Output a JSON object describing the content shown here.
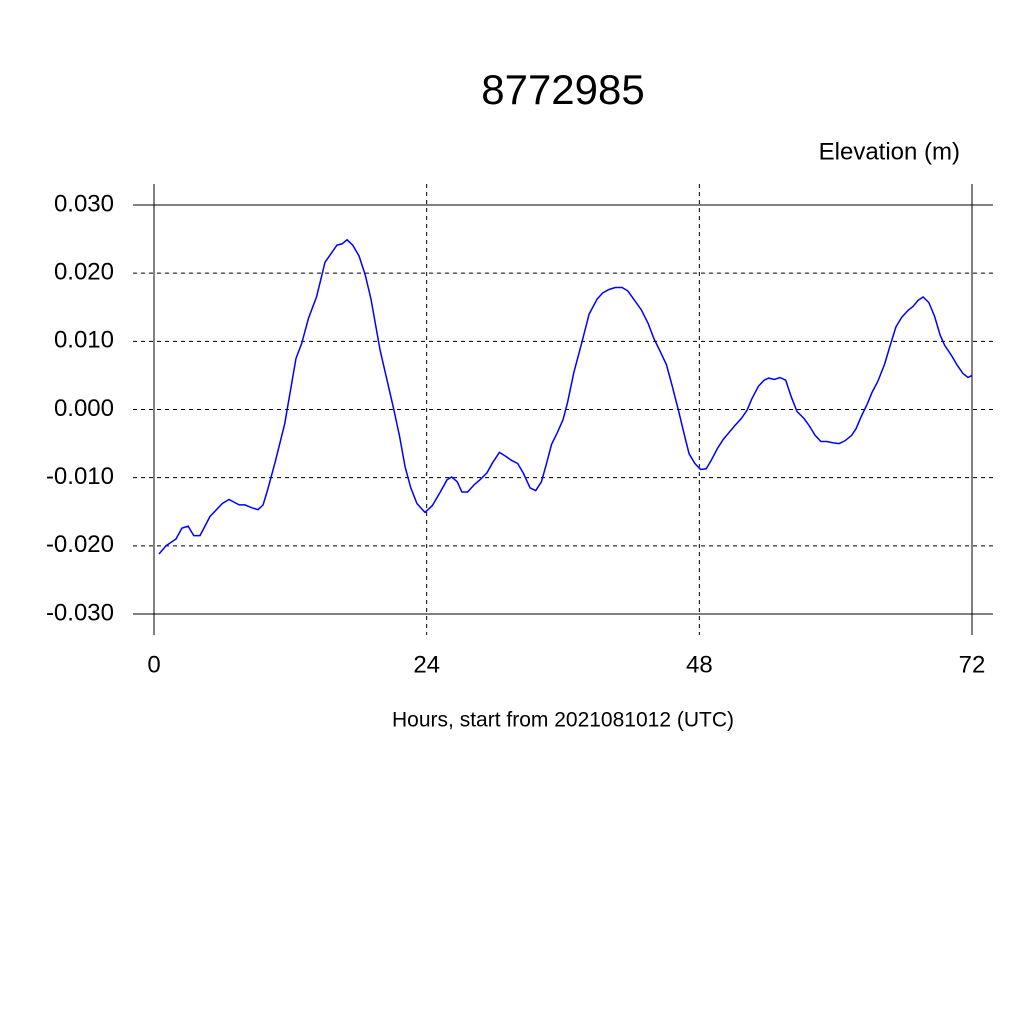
{
  "chart_data": {
    "type": "line",
    "title": "8772985",
    "ylabel": "Elevation (m)",
    "xlabel": "Hours, start from 2021081012 (UTC)",
    "color": "#0000ff",
    "grid": true,
    "x": [
      0.44,
      1.06,
      1.94,
      2.46,
      3,
      3.5,
      4.05,
      4.93,
      6,
      6.6,
      7.5,
      8,
      8.6,
      9.15,
      9.6,
      10,
      10.65,
      11.5,
      12.5,
      13,
      13.6,
      14.3,
      15.05,
      15.6,
      16.1,
      16.55,
      17,
      17.5,
      18.05,
      18.6,
      19.1,
      19.9,
      21.05,
      21.6,
      22.1,
      22.6,
      23.15,
      23.85,
      24.5,
      25.2,
      25.8,
      26.2,
      26.7,
      27.1,
      27.6,
      28.2,
      28.7,
      29.3,
      29.8,
      30.4,
      30.9,
      31.5,
      32,
      32.5,
      33.1,
      33.6,
      34.1,
      34.5,
      35,
      35.5,
      36,
      36.4,
      36.95,
      37.7,
      38.3,
      39,
      39.5,
      40.05,
      40.6,
      41.2,
      41.7,
      42.3,
      42.9,
      43.5,
      44,
      44.5,
      45.1,
      45.6,
      46.2,
      46.65,
      47.1,
      47.6,
      48.1,
      48.6,
      49,
      49.6,
      50.1,
      50.6,
      51.1,
      51.7,
      52.2,
      52.6,
      53.2,
      53.7,
      54.1,
      54.6,
      55.1,
      55.6,
      56.1,
      56.6,
      57.2,
      57.6,
      58.2,
      58.7,
      59.2,
      59.8,
      60.3,
      60.8,
      61.4,
      61.8,
      62.2,
      62.8,
      63.2,
      63.7,
      64.3,
      64.8,
      65.3,
      65.8,
      66.4,
      66.8,
      67.25,
      67.7,
      68.2,
      68.7,
      69.2,
      69.6,
      70.2,
      70.7,
      71.2,
      71.65,
      72
    ],
    "values": [
      -0.0212,
      -0.02,
      -0.019,
      -0.0174,
      -0.0171,
      -0.0185,
      -0.0185,
      -0.0157,
      -0.0138,
      -0.0132,
      -0.014,
      -0.014,
      -0.0144,
      -0.0147,
      -0.014,
      -0.0118,
      -0.0078,
      -0.0021,
      0.0075,
      0.0097,
      0.0134,
      0.0165,
      0.0216,
      0.0229,
      0.0241,
      0.0243,
      0.0249,
      0.0241,
      0.0225,
      0.0197,
      0.0162,
      0.0087,
      0.0004,
      -0.0038,
      -0.0084,
      -0.0115,
      -0.0138,
      -0.0151,
      -0.0141,
      -0.0121,
      -0.0103,
      -0.0099,
      -0.0106,
      -0.0121,
      -0.0121,
      -0.011,
      -0.0103,
      -0.0093,
      -0.0078,
      -0.0063,
      -0.0068,
      -0.0075,
      -0.0079,
      -0.0093,
      -0.0115,
      -0.0119,
      -0.0106,
      -0.0082,
      -0.0051,
      -0.0034,
      -0.0015,
      0.001,
      0.0054,
      0.0101,
      0.014,
      0.0162,
      0.0171,
      0.0176,
      0.0179,
      0.0179,
      0.0174,
      0.016,
      0.0146,
      0.0126,
      0.0104,
      0.0087,
      0.0066,
      0.0035,
      -0.0004,
      -0.0035,
      -0.0065,
      -0.0079,
      -0.0088,
      -0.0087,
      -0.0076,
      -0.0057,
      -0.0044,
      -0.0034,
      -0.0024,
      -0.0013,
      -0.0001,
      0.0015,
      0.0034,
      0.0043,
      0.0046,
      0.0044,
      0.0047,
      0.0043,
      0.0018,
      -0.0003,
      -0.0013,
      -0.0022,
      -0.0038,
      -0.0047,
      -0.0047,
      -0.0049,
      -0.005,
      -0.0046,
      -0.0038,
      -0.0028,
      -0.0012,
      0.0009,
      0.0025,
      0.0041,
      0.0066,
      0.0094,
      0.0121,
      0.0135,
      0.0146,
      0.0151,
      0.016,
      0.0165,
      0.0157,
      0.0137,
      0.0109,
      0.0094,
      0.0079,
      0.0065,
      0.0053,
      0.0047,
      0.005
    ],
    "xlim": [
      0,
      72
    ],
    "xticks": [
      0,
      24,
      48,
      72
    ],
    "ylim": [
      -0.03,
      0.03
    ],
    "yticks": [
      {
        "value": -0.03,
        "label": "-0.030"
      },
      {
        "value": -0.02,
        "label": "-0.020"
      },
      {
        "value": -0.01,
        "label": "-0.010"
      },
      {
        "value": 0,
        "label": "0.000"
      },
      {
        "value": 0.01,
        "label": "0.010"
      },
      {
        "value": 0.02,
        "label": "0.020"
      },
      {
        "value": 0.03,
        "label": "0.030"
      }
    ]
  }
}
